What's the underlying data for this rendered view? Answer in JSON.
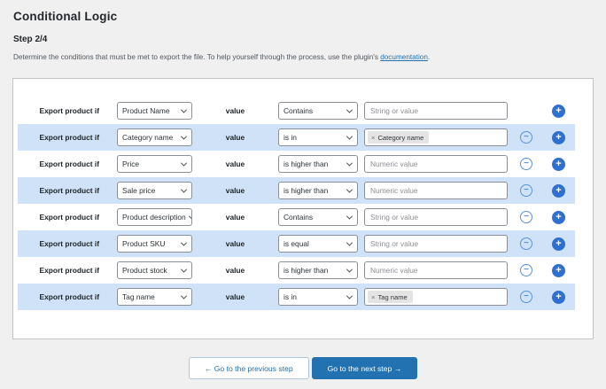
{
  "page": {
    "title": "Conditional Logic",
    "step": "Step 2/4",
    "description_before_link": "Determine the conditions that must be met to export the file. To help yourself through the process, use the plugin's ",
    "description_link": "documentation",
    "description_after_link": "."
  },
  "icons": {
    "add": "+",
    "remove": "−",
    "chip_remove": "×"
  },
  "colors": {
    "accent": "#2271b1",
    "row_highlight": "#cfe2f7",
    "icon_blue": "#2e6fd2",
    "page_background": "#f0f0f1",
    "panel_border": "#c3c4c7"
  },
  "rows": [
    {
      "label": "Export product if",
      "field": "Product Name",
      "value_label": "value",
      "operator": "Contains",
      "placeholder": "String or value",
      "highlighted": false,
      "removable": false
    },
    {
      "label": "Export product if",
      "field": "Category name",
      "value_label": "value",
      "operator": "is in",
      "chip": "Category name",
      "highlighted": true,
      "removable": true
    },
    {
      "label": "Export product if",
      "field": "Price",
      "value_label": "value",
      "operator": "is higher than",
      "placeholder": "Numeric value",
      "highlighted": false,
      "removable": true
    },
    {
      "label": "Export product if",
      "field": "Sale price",
      "value_label": "value",
      "operator": "is higher than",
      "placeholder": "Numeric value",
      "highlighted": true,
      "removable": true
    },
    {
      "label": "Export product if",
      "field": "Product description",
      "value_label": "value",
      "operator": "Contains",
      "placeholder": "String or value",
      "highlighted": false,
      "removable": true
    },
    {
      "label": "Export product if",
      "field": "Product SKU",
      "value_label": "value",
      "operator": "is equal",
      "placeholder": "String or value",
      "highlighted": true,
      "removable": true
    },
    {
      "label": "Export product if",
      "field": "Product stock",
      "value_label": "value",
      "operator": "is higher than",
      "placeholder": "Numeric value",
      "highlighted": false,
      "removable": true
    },
    {
      "label": "Export product if",
      "field": "Tag name",
      "value_label": "value",
      "operator": "is in",
      "chip": "Tag name",
      "highlighted": true,
      "removable": true
    }
  ],
  "footer": {
    "previous_label": "← Go to the previous step",
    "next_label": "Go to the next step →"
  }
}
